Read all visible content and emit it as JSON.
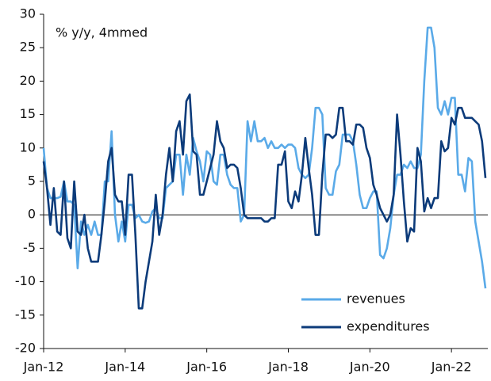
{
  "chart_data": {
    "type": "line",
    "annotation": "% y/y, 4mmed",
    "categories": [
      "Jan-12",
      null,
      null,
      null,
      null,
      null,
      null,
      null,
      null,
      null,
      null,
      null,
      null,
      null,
      null,
      null,
      null,
      null,
      null,
      null,
      null,
      null,
      null,
      null,
      "Jan-14",
      null,
      null,
      null,
      null,
      null,
      null,
      null,
      null,
      null,
      null,
      null,
      null,
      null,
      null,
      null,
      null,
      null,
      null,
      null,
      null,
      null,
      null,
      null,
      "Jan-16",
      null,
      null,
      null,
      null,
      null,
      null,
      null,
      null,
      null,
      null,
      null,
      null,
      null,
      null,
      null,
      null,
      null,
      null,
      null,
      null,
      null,
      null,
      null,
      "Jan-18",
      null,
      null,
      null,
      null,
      null,
      null,
      null,
      null,
      null,
      null,
      null,
      null,
      null,
      null,
      null,
      null,
      null,
      null,
      null,
      null,
      null,
      null,
      null,
      "Jan-20",
      null,
      null,
      null,
      null,
      null,
      null,
      null,
      null,
      null,
      null,
      null,
      null,
      null,
      null,
      null,
      null,
      null,
      null,
      null,
      null,
      null,
      null,
      null,
      "Jan-22",
      null,
      null,
      null,
      null,
      null,
      null,
      null,
      null,
      null,
      null
    ],
    "series": [
      {
        "name": "revenues",
        "color": "#5aaae8",
        "values": [
          10,
          4,
          2.5,
          2.5,
          2.5,
          2.7,
          5,
          2,
          2,
          1.5,
          -8,
          -1,
          -3,
          -1.5,
          -3,
          -1,
          -3,
          -3,
          5,
          5,
          12.5,
          0,
          -4,
          -1,
          -4,
          1.5,
          1.5,
          -0.5,
          0,
          -1,
          -1.2,
          -1,
          0.5,
          1,
          -0.5,
          -0.5,
          4,
          4.5,
          5,
          9,
          9,
          3,
          9,
          6,
          11.5,
          9.5,
          8,
          5,
          9.5,
          9,
          5,
          4.5,
          9,
          9,
          6,
          4.5,
          4,
          4,
          -1,
          0,
          14,
          11,
          14,
          11,
          11,
          11.5,
          10,
          11,
          10,
          10,
          10.5,
          10,
          10.5,
          10.5,
          10,
          7,
          6,
          5.5,
          6,
          10,
          16,
          16,
          15,
          4,
          3,
          3,
          6.5,
          7.5,
          12,
          12,
          12,
          11,
          7.5,
          3,
          1,
          1,
          2.5,
          3.5,
          3.5,
          -6,
          -6.5,
          -5,
          -2,
          3,
          6,
          6,
          7.5,
          7,
          8,
          7,
          7,
          9,
          20,
          28,
          28,
          25,
          16,
          15,
          17,
          15,
          17.5,
          17.5,
          6,
          6,
          3.5,
          8.5,
          8,
          -1,
          -4,
          -7,
          -11
        ]
      },
      {
        "name": "expenditures",
        "color": "#0c3b7a",
        "values": [
          8,
          4,
          -1.5,
          4,
          -2.5,
          -3,
          5,
          -3.5,
          -5,
          5,
          -2.5,
          -3,
          0,
          -5,
          -7,
          -7,
          -7,
          -3,
          2,
          8,
          10,
          3,
          2,
          2,
          -3,
          6,
          6,
          -3,
          -14,
          -14,
          -10,
          -7,
          -4,
          3,
          -3,
          0,
          6,
          10,
          5,
          12.5,
          14,
          9,
          17,
          18,
          9.5,
          9,
          3,
          3,
          5,
          7,
          9,
          14,
          11,
          10,
          7,
          7.5,
          7.5,
          7,
          4,
          0,
          -0.5,
          -0.5,
          -0.5,
          -0.5,
          -0.5,
          -1,
          -1,
          -0.5,
          -0.5,
          7.5,
          7.5,
          9.5,
          2,
          1,
          3.5,
          2,
          6,
          11.5,
          7,
          3,
          -3,
          -3,
          6,
          12,
          12,
          11.5,
          12,
          16,
          16,
          11,
          11,
          10.5,
          13.5,
          13.5,
          13,
          10,
          8.5,
          4.5,
          3,
          1,
          0,
          -1,
          0,
          3,
          15,
          9,
          2,
          -4,
          -2,
          -2.5,
          10,
          8,
          0.5,
          2.5,
          1,
          2.5,
          2.5,
          11,
          9.5,
          10,
          14.5,
          13.5,
          16,
          16,
          14.5,
          14.5,
          14.5,
          14,
          13.5,
          11,
          5.5
        ]
      }
    ],
    "ylim": [
      -20,
      30
    ],
    "yticks": [
      -20,
      -15,
      -10,
      -5,
      0,
      5,
      10,
      15,
      20,
      25,
      30
    ],
    "legend": "lower right"
  }
}
